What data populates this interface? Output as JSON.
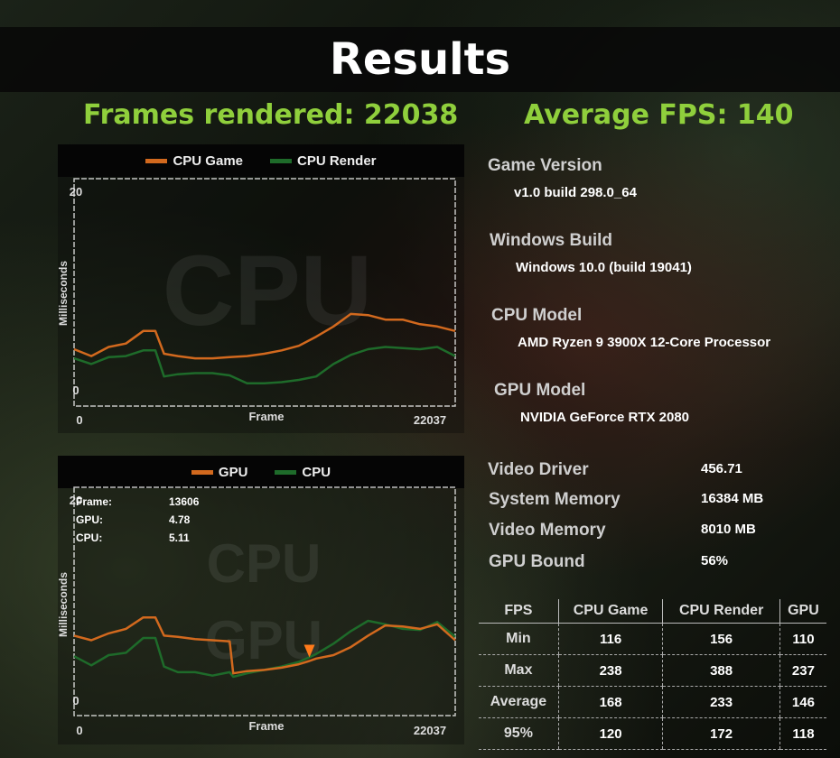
{
  "title": "Results",
  "frames_rendered": "Frames rendered: 22038",
  "average_fps": "Average FPS: 140",
  "cpu_chart": {
    "legend": [
      "CPU Game",
      "CPU Render"
    ],
    "colors": [
      "#d2691e",
      "#1e6b2a"
    ],
    "watermark": "CPU",
    "ylabel": "Milliseconds",
    "xlabel": "Frame",
    "y_max_label": "20",
    "y_min_label": "0",
    "x_min_label": "0",
    "x_max_label": "22037"
  },
  "gpu_chart": {
    "legend": [
      "GPU",
      "CPU"
    ],
    "colors": [
      "#d2691e",
      "#1e6b2a"
    ],
    "watermark_1": "CPU",
    "watermark_2": "GPU",
    "ylabel": "Milliseconds",
    "xlabel": "Frame",
    "y_max_label": "20",
    "y_min_label": "0",
    "x_min_label": "0",
    "x_max_label": "22037",
    "tooltip": [
      {
        "label": "Frame:",
        "value": "13606"
      },
      {
        "label": "GPU:",
        "value": "4.78"
      },
      {
        "label": "CPU:",
        "value": "5.11"
      }
    ]
  },
  "info": {
    "game_version_label": "Game Version",
    "game_version": "v1.0 build 298.0_64",
    "windows_build_label": "Windows Build",
    "windows_build": "Windows 10.0 (build 19041)",
    "cpu_model_label": "CPU Model",
    "cpu_model": "AMD Ryzen 9 3900X 12-Core Processor",
    "gpu_model_label": "GPU Model",
    "gpu_model": "NVIDIA GeForce RTX 2080",
    "video_driver_label": "Video Driver",
    "video_driver": "456.71",
    "system_memory_label": "System Memory",
    "system_memory": "16384 MB",
    "video_memory_label": "Video Memory",
    "video_memory": "8010 MB",
    "gpu_bound_label": "GPU Bound",
    "gpu_bound": "56%"
  },
  "table": {
    "headers": [
      "FPS",
      "CPU Game",
      "CPU Render",
      "GPU"
    ],
    "rows": [
      [
        "Min",
        "116",
        "156",
        "110"
      ],
      [
        "Max",
        "238",
        "388",
        "237"
      ],
      [
        "Average",
        "168",
        "233",
        "146"
      ],
      [
        "95%",
        "120",
        "172",
        "118"
      ]
    ]
  },
  "chart_data": [
    {
      "type": "line",
      "x": [
        0,
        1000,
        2000,
        3000,
        4000,
        4700,
        5200,
        6000,
        7000,
        8000,
        9000,
        10000,
        11000,
        12000,
        13000,
        14000,
        15000,
        16000,
        17000,
        18000,
        19000,
        20000,
        21000,
        22037
      ],
      "series": [
        {
          "name": "CPU Game",
          "values": [
            5.0,
            4.4,
            5.2,
            5.5,
            6.6,
            6.6,
            4.6,
            4.4,
            4.2,
            4.2,
            4.3,
            4.4,
            4.6,
            4.9,
            5.3,
            6.1,
            7.0,
            8.1,
            8.0,
            7.6,
            7.6,
            7.2,
            7.0,
            6.6
          ]
        },
        {
          "name": "CPU Render",
          "values": [
            4.2,
            3.7,
            4.3,
            4.4,
            4.9,
            4.9,
            2.6,
            2.8,
            2.9,
            2.9,
            2.7,
            2.0,
            2.0,
            2.1,
            2.3,
            2.6,
            3.7,
            4.5,
            5.0,
            5.2,
            5.1,
            5.0,
            5.2,
            4.4
          ]
        }
      ],
      "xlabel": "Frame",
      "ylabel": "Milliseconds",
      "ylim": [
        0,
        20
      ],
      "xlim": [
        0,
        22037
      ]
    },
    {
      "type": "line",
      "x": [
        0,
        1000,
        2000,
        3000,
        4000,
        4700,
        5200,
        6000,
        7000,
        8000,
        9000,
        9200,
        10000,
        11000,
        12000,
        13000,
        13606,
        14000,
        15000,
        16000,
        17000,
        18000,
        19000,
        20000,
        21000,
        22037
      ],
      "series": [
        {
          "name": "GPU",
          "values": [
            7.0,
            6.6,
            7.2,
            7.6,
            8.6,
            8.6,
            7.0,
            6.9,
            6.7,
            6.6,
            6.5,
            3.7,
            3.9,
            4.0,
            4.2,
            4.5,
            4.78,
            5.0,
            5.3,
            6.0,
            7.0,
            7.9,
            7.8,
            7.6,
            8.0,
            6.6
          ]
        },
        {
          "name": "CPU",
          "values": [
            5.2,
            4.4,
            5.3,
            5.5,
            6.8,
            6.8,
            4.3,
            3.8,
            3.8,
            3.5,
            3.8,
            3.4,
            3.7,
            4.0,
            4.3,
            4.7,
            5.11,
            5.4,
            6.3,
            7.4,
            8.3,
            8.0,
            7.6,
            7.5,
            8.2,
            6.9
          ]
        }
      ],
      "xlabel": "Frame",
      "ylabel": "Milliseconds",
      "ylim": [
        0,
        20
      ],
      "xlim": [
        0,
        22037
      ],
      "marker_x": 13606
    }
  ]
}
